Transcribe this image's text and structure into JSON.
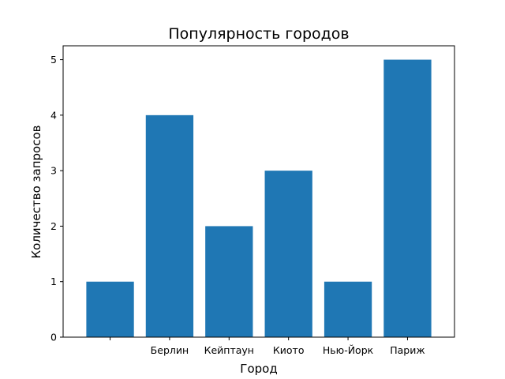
{
  "chart_data": {
    "type": "bar",
    "title": "Популярность городов",
    "xlabel": "Город",
    "ylabel": "Количество запросов",
    "categories": [
      "",
      "Берлин",
      "Кейптаун",
      "Киото",
      "Нью-Йорк",
      "Париж"
    ],
    "values": [
      1,
      4,
      2,
      3,
      1,
      5
    ],
    "ylim": [
      0,
      5.25
    ],
    "yticks": [
      0,
      1,
      2,
      3,
      4,
      5
    ],
    "grid": false,
    "bar_color": "#1f77b4"
  }
}
